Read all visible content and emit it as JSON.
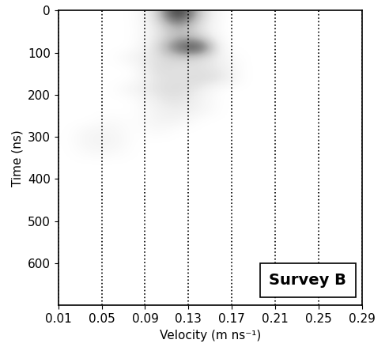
{
  "chart_data": {
    "type": "heatmap",
    "xlabel": "Velocity (m ns⁻¹)",
    "ylabel": "Time (ns)",
    "annotation": "Survey B",
    "xlim": [
      0.01,
      0.29
    ],
    "ylim": [
      700,
      0
    ],
    "xticks": [
      0.01,
      0.05,
      0.09,
      0.13,
      0.17,
      0.21,
      0.25,
      0.29
    ],
    "yticks": [
      0,
      100,
      200,
      300,
      400,
      500,
      600
    ],
    "grid": "x",
    "color": "Greys",
    "x_edges": [
      0.01,
      0.03,
      0.05,
      0.07,
      0.09,
      0.11,
      0.13,
      0.15,
      0.17,
      0.19,
      0.21,
      0.23,
      0.25,
      0.27,
      0.29
    ],
    "y_edges": [
      0,
      25,
      50,
      75,
      100,
      125,
      150,
      175,
      200,
      225,
      250,
      275,
      300,
      325,
      350,
      375,
      400,
      425,
      450,
      475,
      500,
      525,
      550,
      575,
      600,
      625,
      650,
      675,
      700
    ],
    "cells": [
      [
        0,
        0,
        0,
        0,
        0.2,
        1.0,
        0.3,
        0,
        0,
        0,
        0,
        0,
        0,
        0
      ],
      [
        0,
        0,
        0,
        0,
        0.15,
        0.5,
        0.2,
        0,
        0,
        0,
        0,
        0,
        0,
        0
      ],
      [
        0,
        0,
        0,
        0,
        0.15,
        0.4,
        0.3,
        0,
        0,
        0,
        0,
        0,
        0,
        0
      ],
      [
        0,
        0,
        0,
        0,
        0.2,
        0.7,
        0.9,
        0,
        0,
        0,
        0,
        0,
        0,
        0
      ],
      [
        0,
        0,
        0,
        0.1,
        0.2,
        0.3,
        0.25,
        0.1,
        0,
        0,
        0,
        0,
        0,
        0
      ],
      [
        0,
        0,
        0,
        0,
        0.25,
        0.2,
        0.2,
        0.15,
        0,
        0,
        0,
        0,
        0,
        0
      ],
      [
        0,
        0,
        0,
        0,
        0.2,
        0.2,
        0.25,
        0.2,
        0,
        0,
        0,
        0,
        0,
        0
      ],
      [
        0,
        0,
        0,
        0.1,
        0.2,
        0.25,
        0.15,
        0,
        0,
        0,
        0,
        0,
        0,
        0
      ],
      [
        0,
        0,
        0,
        0,
        0.15,
        0.2,
        0.1,
        0,
        0,
        0,
        0,
        0,
        0,
        0
      ],
      [
        0,
        0,
        0,
        0,
        0.1,
        0.15,
        0.1,
        0,
        0,
        0,
        0,
        0,
        0,
        0
      ],
      [
        0,
        0,
        0.05,
        0,
        0.1,
        0.1,
        0,
        0,
        0,
        0,
        0,
        0,
        0,
        0
      ],
      [
        0,
        0.08,
        0.08,
        0,
        0.05,
        0,
        0,
        0,
        0,
        0,
        0,
        0,
        0,
        0
      ],
      [
        0,
        0.1,
        0.1,
        0,
        0,
        0,
        0,
        0,
        0,
        0,
        0,
        0,
        0,
        0
      ],
      [
        0,
        0.05,
        0.05,
        0,
        0,
        0,
        0,
        0,
        0,
        0,
        0,
        0,
        0,
        0
      ],
      [
        0,
        0,
        0,
        0,
        0,
        0,
        0,
        0,
        0,
        0,
        0,
        0,
        0,
        0
      ],
      [
        0,
        0,
        0,
        0,
        0,
        0,
        0,
        0,
        0,
        0,
        0,
        0,
        0,
        0
      ],
      [
        0,
        0,
        0,
        0,
        0,
        0,
        0,
        0,
        0,
        0,
        0,
        0,
        0,
        0
      ],
      [
        0,
        0,
        0,
        0,
        0,
        0,
        0,
        0,
        0,
        0,
        0,
        0,
        0,
        0
      ],
      [
        0,
        0,
        0,
        0,
        0,
        0,
        0,
        0,
        0,
        0,
        0,
        0,
        0,
        0
      ],
      [
        0,
        0,
        0,
        0,
        0,
        0,
        0,
        0,
        0,
        0,
        0,
        0,
        0,
        0
      ],
      [
        0,
        0,
        0,
        0,
        0,
        0,
        0,
        0,
        0,
        0,
        0,
        0,
        0,
        0
      ],
      [
        0,
        0,
        0,
        0,
        0,
        0,
        0,
        0,
        0,
        0,
        0,
        0,
        0,
        0
      ],
      [
        0,
        0,
        0,
        0,
        0,
        0,
        0,
        0,
        0,
        0,
        0,
        0,
        0,
        0
      ],
      [
        0,
        0,
        0,
        0,
        0,
        0,
        0,
        0,
        0,
        0,
        0,
        0,
        0,
        0
      ],
      [
        0,
        0,
        0,
        0,
        0,
        0,
        0,
        0,
        0,
        0,
        0,
        0,
        0,
        0
      ],
      [
        0,
        0,
        0,
        0,
        0,
        0,
        0,
        0,
        0,
        0,
        0,
        0,
        0,
        0
      ],
      [
        0,
        0,
        0,
        0,
        0,
        0,
        0,
        0,
        0,
        0,
        0,
        0,
        0,
        0
      ],
      [
        0,
        0,
        0,
        0,
        0,
        0,
        0,
        0,
        0,
        0,
        0,
        0,
        0,
        0
      ]
    ]
  }
}
